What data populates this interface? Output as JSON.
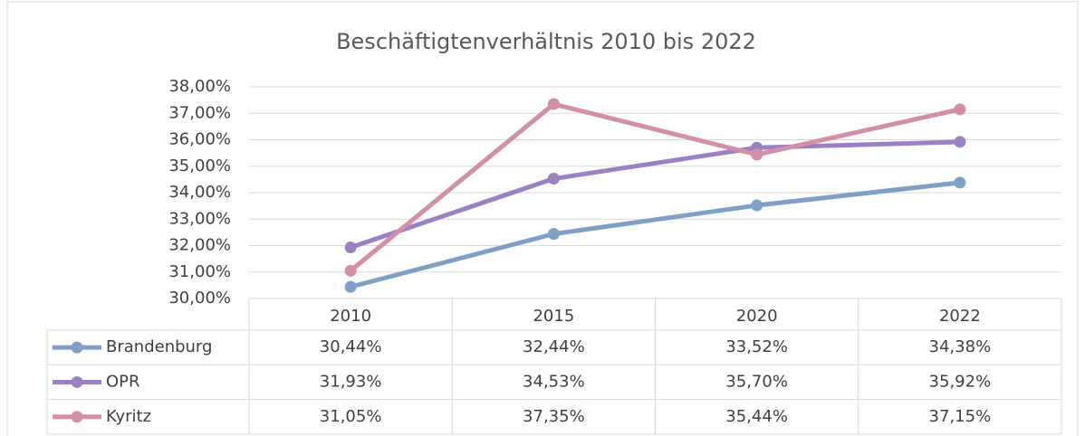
{
  "chart_data": {
    "type": "line",
    "title": "Beschäftigtenverhältnis 2010 bis 2022",
    "categories": [
      "2010",
      "2015",
      "2020",
      "2022"
    ],
    "series": [
      {
        "name": "Brandenburg",
        "color": "#7f9fc6",
        "values": [
          30.44,
          32.44,
          33.52,
          34.38
        ],
        "value_labels": [
          "30,44%",
          "32,44%",
          "33,52%",
          "34,38%"
        ]
      },
      {
        "name": "OPR",
        "color": "#9b80c4",
        "values": [
          31.93,
          34.53,
          35.7,
          35.92
        ],
        "value_labels": [
          "31,93%",
          "34,53%",
          "35,70%",
          "35,92%"
        ]
      },
      {
        "name": "Kyritz",
        "color": "#d48fa8",
        "values": [
          31.05,
          37.35,
          35.44,
          37.15
        ],
        "value_labels": [
          "31,05%",
          "37,35%",
          "35,44%",
          "37,15%"
        ]
      }
    ],
    "ylim": [
      30,
      38
    ],
    "yticks": [
      {
        "value": 30,
        "label": "30,00%"
      },
      {
        "value": 31,
        "label": "31,00%"
      },
      {
        "value": 32,
        "label": "32,00%"
      },
      {
        "value": 33,
        "label": "33,00%"
      },
      {
        "value": 34,
        "label": "34,00%"
      },
      {
        "value": 35,
        "label": "35,00%"
      },
      {
        "value": 36,
        "label": "36,00%"
      },
      {
        "value": 37,
        "label": "37,00%"
      },
      {
        "value": 38,
        "label": "38,00%"
      }
    ],
    "grid": true,
    "data_table": true
  }
}
